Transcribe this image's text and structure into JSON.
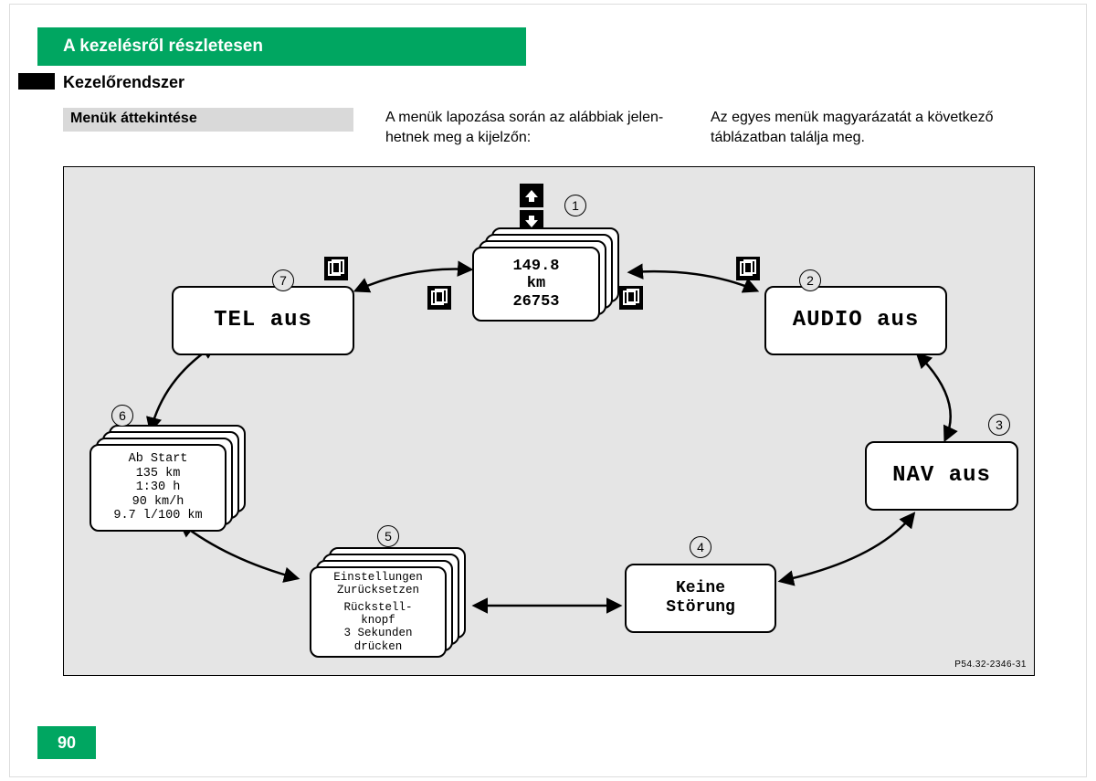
{
  "page": {
    "banner_title": "A kezelésről részletesen",
    "section_title": "Kezelőrendszer",
    "sub_heading": "Menük áttekintése",
    "col1_text": "A menük lapozása során az alábbiak jelen-\nhetnek meg a kijelzőn:",
    "col2_text": "Az egyes menük magyarázatát a következő\ntáblázatban találja meg.",
    "page_number": "90",
    "diagram_ref": "P54.32-2346-31"
  },
  "colors": {
    "green": "#00a661",
    "diagram_bg": "#e5e5e5",
    "sub_bg": "#d9d9d9"
  },
  "screens": {
    "s1": {
      "num": "1",
      "lines": [
        "149.8",
        "km",
        "26753"
      ]
    },
    "s2": {
      "num": "2",
      "lines": [
        "AUDIO aus"
      ]
    },
    "s3": {
      "num": "3",
      "lines": [
        "NAV aus"
      ]
    },
    "s4": {
      "num": "4",
      "lines": [
        "Keine",
        "Störung"
      ]
    },
    "s5": {
      "num": "5",
      "lines": [
        "Einstellungen",
        "Zurücksetzen",
        "Rückstell-",
        "knopf",
        "3 Sekunden",
        "drücken"
      ]
    },
    "s6": {
      "num": "6",
      "lines": [
        "Ab Start",
        "135 km",
        "1:30 h",
        "90 km/h",
        "9.7 l/100 km"
      ]
    },
    "s7": {
      "num": "7",
      "lines": [
        "TEL aus"
      ]
    }
  }
}
